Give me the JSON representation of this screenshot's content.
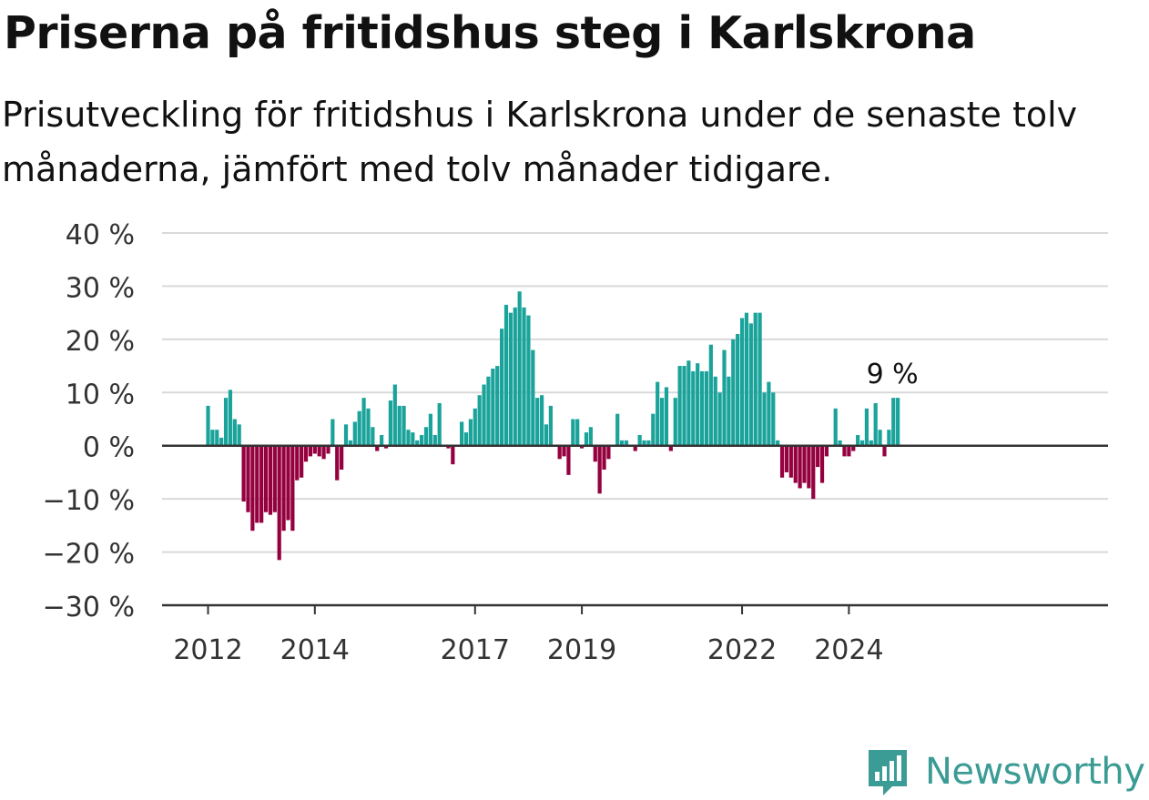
{
  "title": "Priserna på fritidshus steg i Karlskrona",
  "subtitle": "Prisutveckling för fritidshus i Karlskrona under de senaste tolv månaderna, jämfört med tolv månader tidigare.",
  "brand": {
    "name": "Newsworthy",
    "icon": "newsworthy-chart-icon",
    "color": "#3a9c94"
  },
  "colors": {
    "positive": "#1aa39a",
    "negative": "#95003f",
    "grid": "#d9d9d9",
    "axis": "#333333"
  },
  "chart_data": {
    "type": "bar",
    "title": "",
    "xlabel": "",
    "ylabel": "",
    "ylim": [
      -30,
      40
    ],
    "y_ticks": [
      40,
      30,
      20,
      10,
      0,
      -10,
      -20,
      -30
    ],
    "y_tick_labels": [
      "40 %",
      "30 %",
      "20 %",
      "10 %",
      "0 %",
      "−10 %",
      "−20 %",
      "−30 %"
    ],
    "x_ticks": [
      "2012",
      "2014",
      "2017",
      "2019",
      "2022",
      "2024"
    ],
    "start": "2012-01",
    "last_value_label": "9 %",
    "grid": true,
    "values": [
      7.5,
      3,
      3,
      1.5,
      9,
      10.5,
      5,
      4,
      -10.5,
      -12.5,
      -16,
      -14.5,
      -14.5,
      -12.5,
      -13,
      -12.5,
      -21.5,
      -16,
      -14,
      -16,
      -6.5,
      -6,
      -3,
      -2,
      -1.5,
      -2,
      -2.5,
      -1.5,
      5,
      -6.5,
      -4.5,
      4,
      1,
      4.5,
      6.5,
      9,
      7,
      3.5,
      -1,
      2,
      -0.5,
      8.5,
      11.5,
      7.5,
      7.5,
      3,
      2.5,
      1,
      2,
      3.5,
      6,
      2,
      8,
      0,
      -0.5,
      -3.5,
      0,
      4.5,
      2.5,
      5,
      7,
      9.5,
      11.5,
      13,
      14.5,
      15,
      22,
      26.5,
      25,
      26,
      29,
      26,
      24.5,
      18,
      9,
      9.5,
      4,
      7.5,
      0,
      -2.5,
      -2,
      -5.5,
      5,
      5,
      -0.5,
      2.5,
      3.5,
      -3,
      -9,
      -4.5,
      -2.5,
      0,
      6,
      1,
      1,
      0,
      -1,
      2,
      1,
      1,
      6,
      12,
      9,
      11,
      -1,
      9,
      15,
      15,
      16,
      14,
      15.5,
      14,
      14,
      19,
      13,
      10,
      18,
      13,
      20,
      21,
      24,
      25,
      23,
      25,
      25,
      10,
      12,
      10,
      1,
      -6,
      -5,
      -6,
      -7,
      -8,
      -7,
      -8,
      -10,
      -4,
      -7,
      -2,
      0,
      7,
      1,
      -2,
      -2,
      -1,
      2,
      1,
      7,
      1,
      8,
      3,
      -2,
      3,
      9,
      9
    ]
  }
}
